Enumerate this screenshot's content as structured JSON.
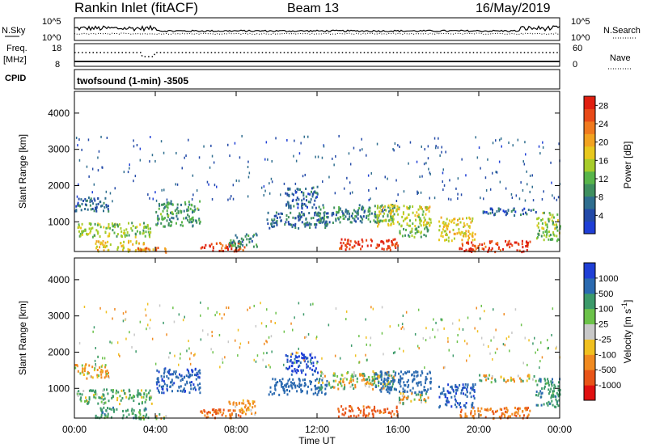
{
  "header": {
    "station": "Rankin Inlet (fitACF)",
    "beam": "Beam 13",
    "date": "16/May/2019"
  },
  "summary": {
    "left_label": "N.Sky",
    "right_label": "N.Search",
    "nsky_ticks": [
      "10^5",
      "10^0"
    ],
    "freq_label": "Freq.",
    "freq_unit": "[MHz]",
    "freq_ticks": [
      "18",
      "8"
    ],
    "nave_label": "Nave",
    "nave_ticks": [
      "60",
      "0"
    ],
    "cpid_label": "CPID",
    "program": "twofsound (1-min) -3505"
  },
  "colors": {
    "power": [
      "#1f3fd6",
      "#234aa8",
      "#2f6e8f",
      "#3f8f5f",
      "#58b54a",
      "#a7cc2a",
      "#e8c81e",
      "#f2a321",
      "#f07a1f",
      "#e84a18",
      "#e01f10"
    ],
    "velocity": [
      "#1f3fd6",
      "#2b6ab0",
      "#3c9a6a",
      "#6cc24a",
      "#c8c8c8",
      "#f0c020",
      "#f08a20",
      "#e85418",
      "#e01010"
    ]
  },
  "chart_data": [
    {
      "type": "heatmap",
      "name": "power",
      "xlabel": "",
      "ylabel": "Slant Range [km]",
      "x_ticks": [
        "00:00",
        "04:00",
        "08:00",
        "12:00",
        "16:00",
        "20:00",
        "00:00"
      ],
      "xlim_hours": [
        0,
        24
      ],
      "y_ticks": [
        1000,
        2000,
        3000,
        4000
      ],
      "ylim": [
        180,
        4600
      ],
      "colorbar_label": "Power [dB]",
      "colorbar_ticks": [
        "4",
        "8",
        "12",
        "16",
        "20",
        "24",
        "28"
      ],
      "colorbar_range": [
        0,
        30
      ],
      "echo_regions": [
        {
          "t": [
            0.1,
            3.8
          ],
          "r": [
            600,
            1000
          ],
          "v": 14
        },
        {
          "t": [
            0.0,
            1.7
          ],
          "r": [
            1300,
            1700
          ],
          "v": 6
        },
        {
          "t": [
            1.0,
            3.6
          ],
          "r": [
            200,
            500
          ],
          "v": 18
        },
        {
          "t": [
            3.0,
            4.5
          ],
          "r": [
            180,
            320
          ],
          "v": 22
        },
        {
          "t": [
            4.0,
            6.2
          ],
          "r": [
            900,
            1600
          ],
          "v": 10
        },
        {
          "t": [
            6.2,
            8.5
          ],
          "r": [
            200,
            450
          ],
          "v": 26
        },
        {
          "t": [
            7.6,
            9.0
          ],
          "r": [
            300,
            700
          ],
          "v": 9
        },
        {
          "t": [
            9.5,
            12.5
          ],
          "r": [
            850,
            1300
          ],
          "v": 7
        },
        {
          "t": [
            10.4,
            12.0
          ],
          "r": [
            1400,
            2000
          ],
          "v": 5
        },
        {
          "t": [
            12.0,
            15.8
          ],
          "r": [
            1000,
            1500
          ],
          "v": 8
        },
        {
          "t": [
            13.0,
            16.0
          ],
          "r": [
            250,
            550
          ],
          "v": 28
        },
        {
          "t": [
            14.8,
            17.6
          ],
          "r": [
            900,
            1500
          ],
          "v": 16
        },
        {
          "t": [
            16.0,
            17.5
          ],
          "r": [
            600,
            900
          ],
          "v": 12
        },
        {
          "t": [
            18.0,
            19.8
          ],
          "r": [
            500,
            1150
          ],
          "v": 18
        },
        {
          "t": [
            19.0,
            22.5
          ],
          "r": [
            200,
            500
          ],
          "v": 27
        },
        {
          "t": [
            20.0,
            22.8
          ],
          "r": [
            1200,
            1400
          ],
          "v": 6
        },
        {
          "t": [
            22.8,
            24.0
          ],
          "r": [
            500,
            1300
          ],
          "v": 14
        }
      ]
    },
    {
      "type": "heatmap",
      "name": "velocity",
      "xlabel": "Time UT",
      "ylabel": "Slant Range [km]",
      "x_ticks": [
        "00:00",
        "04:00",
        "08:00",
        "12:00",
        "16:00",
        "20:00",
        "00:00"
      ],
      "xlim_hours": [
        0,
        24
      ],
      "y_ticks": [
        1000,
        2000,
        3000,
        4000
      ],
      "ylim": [
        180,
        4600
      ],
      "colorbar_label": "Velocity [m s^-1]",
      "colorbar_ticks": [
        "1000",
        "500",
        "100",
        "25",
        "-25",
        "-100",
        "-500",
        "-1000"
      ],
      "echo_regions": [
        {
          "t": [
            0.1,
            3.8
          ],
          "r": [
            600,
            1000
          ],
          "v": 100
        },
        {
          "t": [
            0.0,
            1.7
          ],
          "r": [
            1300,
            1700
          ],
          "v": -100
        },
        {
          "t": [
            1.0,
            3.6
          ],
          "r": [
            200,
            500
          ],
          "v": 200
        },
        {
          "t": [
            3.0,
            4.5
          ],
          "r": [
            180,
            320
          ],
          "v": 0
        },
        {
          "t": [
            4.0,
            6.2
          ],
          "r": [
            900,
            1600
          ],
          "v": 700
        },
        {
          "t": [
            6.2,
            8.5
          ],
          "r": [
            200,
            450
          ],
          "v": -300
        },
        {
          "t": [
            7.6,
            9.0
          ],
          "r": [
            300,
            700
          ],
          "v": -150
        },
        {
          "t": [
            9.5,
            12.5
          ],
          "r": [
            850,
            1300
          ],
          "v": 500
        },
        {
          "t": [
            10.4,
            12.0
          ],
          "r": [
            1400,
            2000
          ],
          "v": 800
        },
        {
          "t": [
            12.0,
            15.8
          ],
          "r": [
            1000,
            1500
          ],
          "v": 0
        },
        {
          "t": [
            13.0,
            16.0
          ],
          "r": [
            250,
            550
          ],
          "v": -400
        },
        {
          "t": [
            14.8,
            17.6
          ],
          "r": [
            900,
            1500
          ],
          "v": 600
        },
        {
          "t": [
            16.0,
            17.5
          ],
          "r": [
            600,
            900
          ],
          "v": 0
        },
        {
          "t": [
            18.0,
            19.8
          ],
          "r": [
            500,
            1150
          ],
          "v": 700
        },
        {
          "t": [
            19.0,
            22.5
          ],
          "r": [
            200,
            500
          ],
          "v": -250
        },
        {
          "t": [
            20.0,
            22.8
          ],
          "r": [
            1200,
            1400
          ],
          "v": 0
        },
        {
          "t": [
            22.8,
            24.0
          ],
          "r": [
            500,
            1300
          ],
          "v": 200
        }
      ]
    }
  ]
}
